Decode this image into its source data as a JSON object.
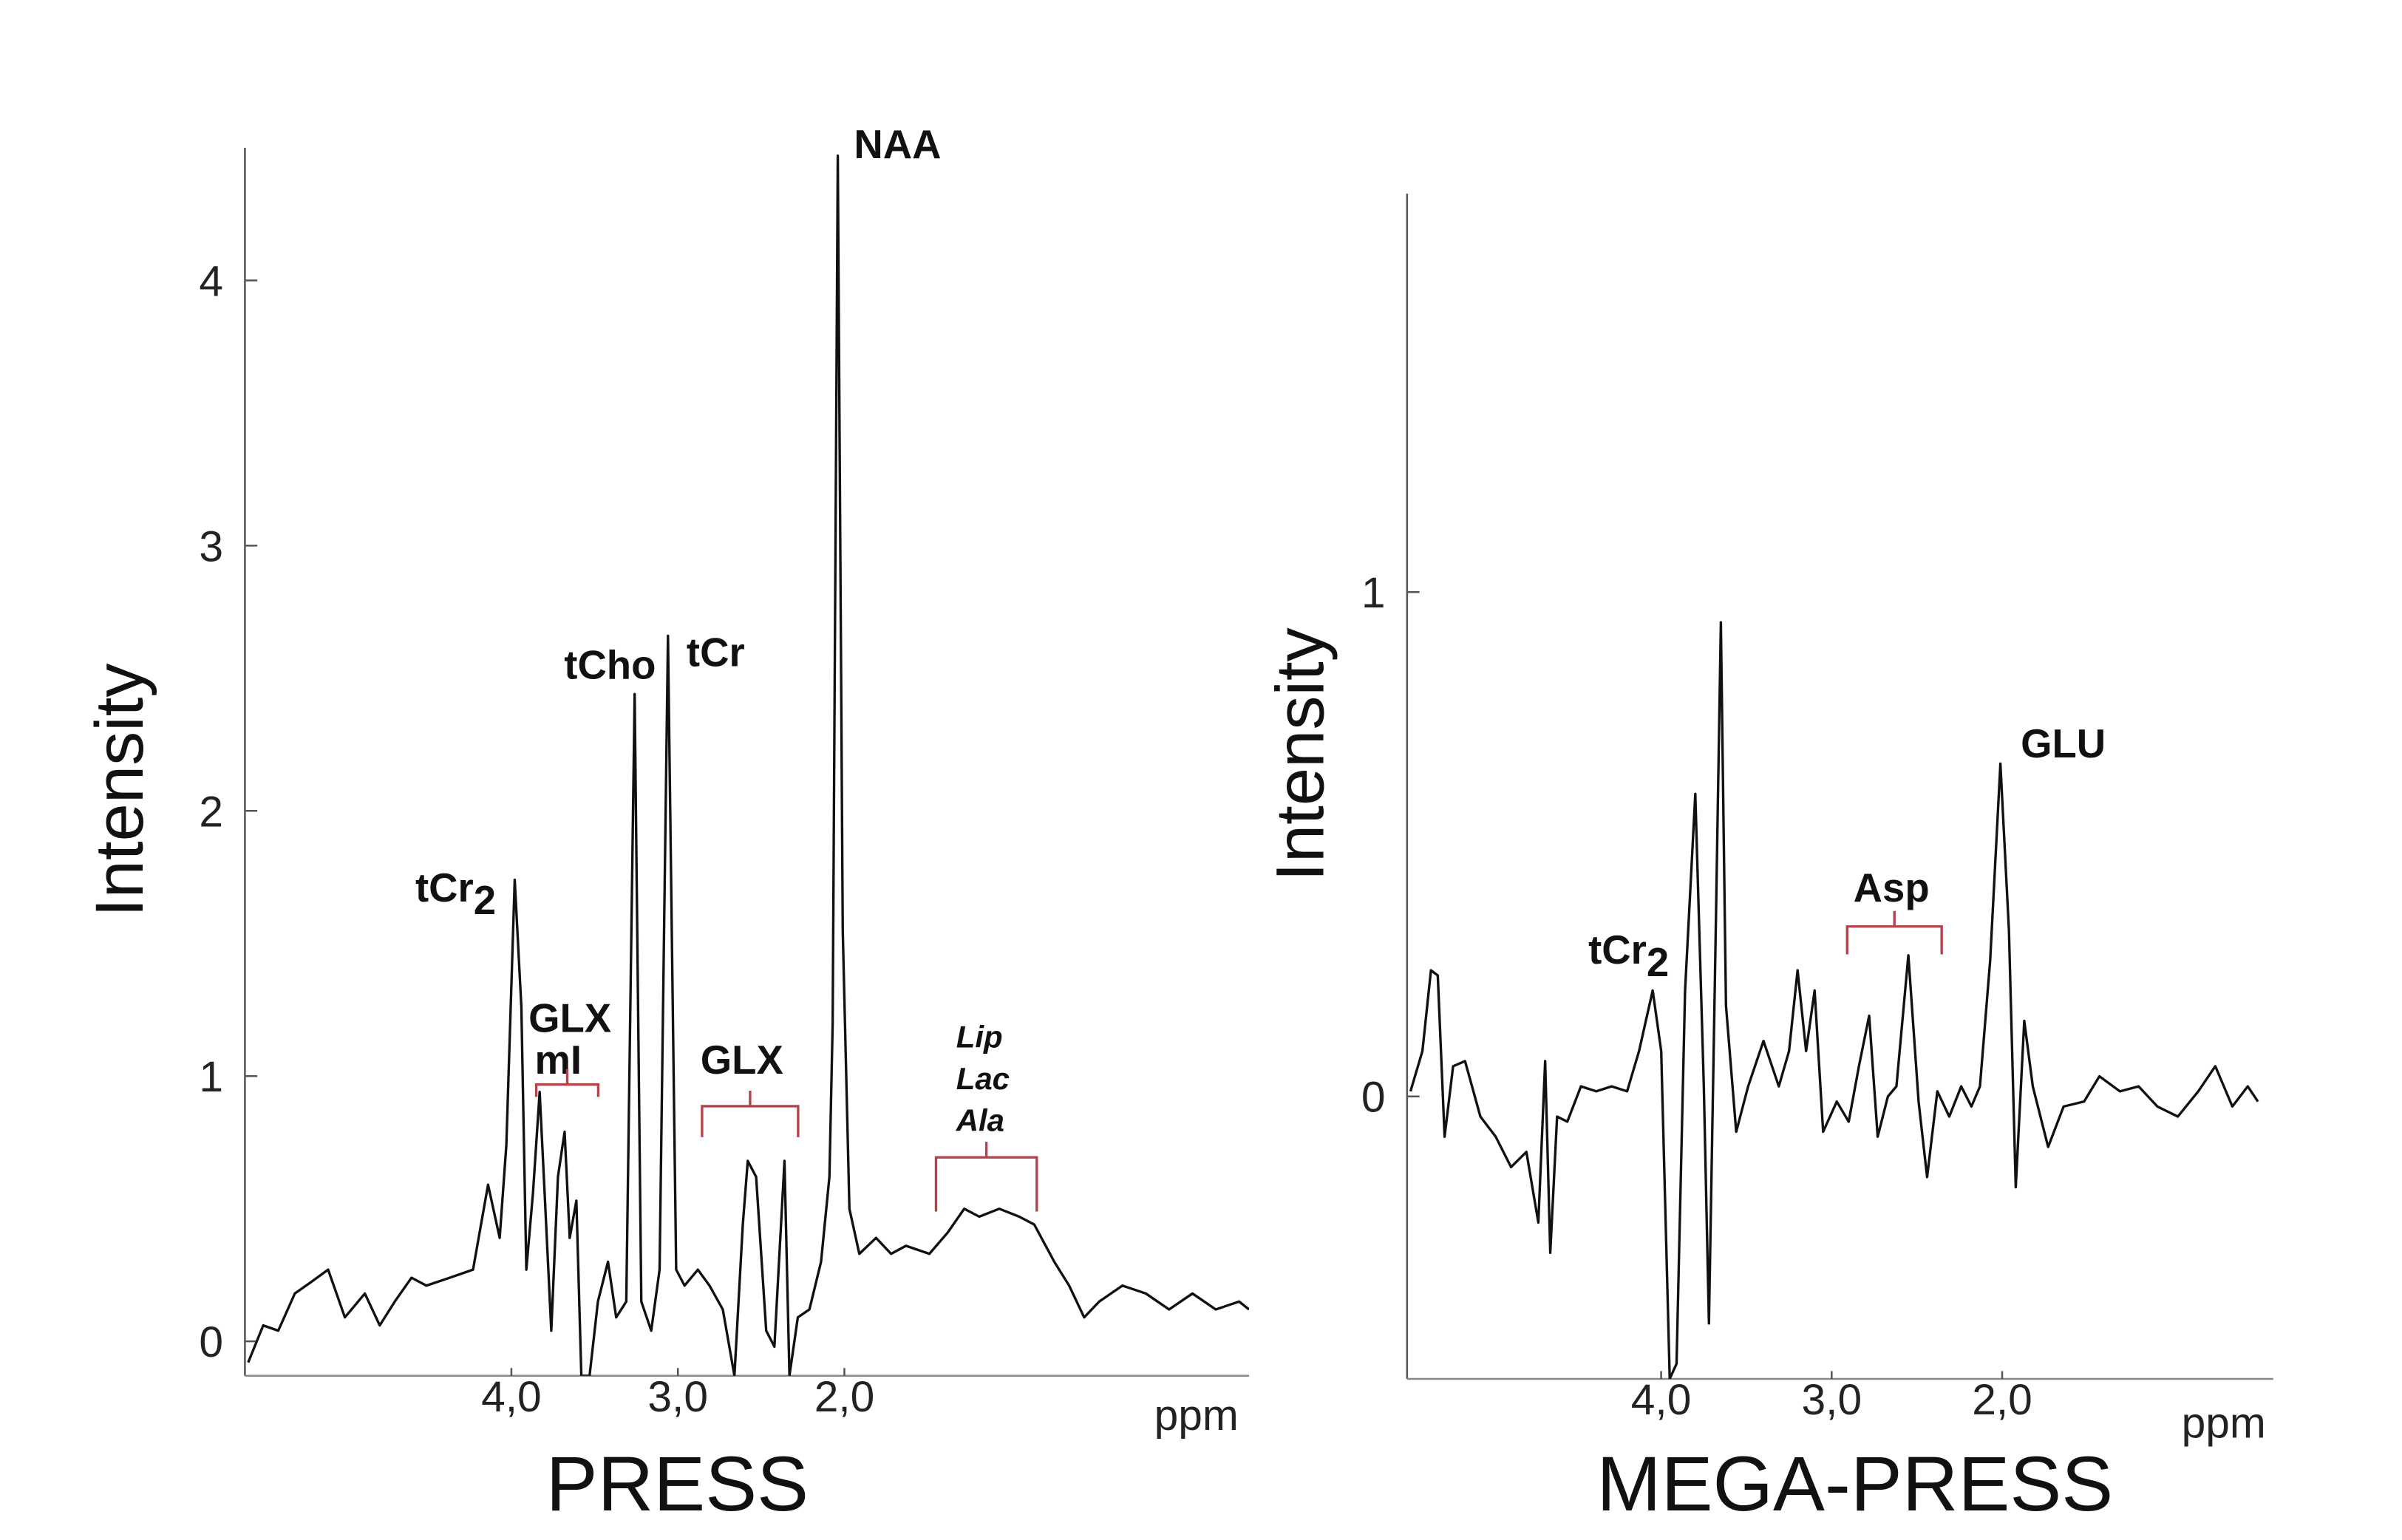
{
  "chart_data": [
    {
      "type": "line",
      "title": "PRESS",
      "ylabel": "Intensity",
      "xlabel": "ppm",
      "x": [
        5.58,
        5.49,
        5.4,
        5.3,
        5.21,
        5.1,
        5.0,
        4.88,
        4.79,
        4.7,
        4.6,
        4.51,
        4.37,
        4.23,
        4.14,
        4.07,
        4.03,
        3.98,
        3.94,
        3.91,
        3.87,
        3.83,
        3.8,
        3.76,
        3.72,
        3.68,
        3.65,
        3.61,
        3.58,
        3.53,
        3.48,
        3.42,
        3.37,
        3.31,
        3.26,
        3.22,
        3.16,
        3.11,
        3.06,
        3.01,
        2.96,
        2.88,
        2.81,
        2.73,
        2.66,
        2.61,
        2.58,
        2.53,
        2.47,
        2.42,
        2.36,
        2.33,
        2.28,
        2.21,
        2.14,
        2.09,
        2.07,
        2.04,
        2.01,
        1.97,
        1.91,
        1.81,
        1.72,
        1.63,
        1.49,
        1.38,
        1.28,
        1.19,
        1.07,
        0.95,
        0.86,
        0.74,
        0.65,
        0.56,
        0.47,
        0.33,
        0.19,
        0.05,
        -0.09,
        -0.23,
        -0.37,
        -0.43
      ],
      "series": [
        {
          "color": "#111111",
          "values": [
            -0.08,
            0.06,
            0.04,
            0.18,
            0.22,
            0.27,
            0.09,
            0.18,
            0.06,
            0.15,
            0.24,
            0.21,
            0.24,
            0.27,
            0.59,
            0.39,
            0.74,
            1.74,
            1.26,
            0.27,
            0.56,
            0.94,
            0.56,
            0.04,
            0.62,
            0.79,
            0.39,
            0.53,
            -0.13,
            -0.13,
            0.15,
            0.3,
            0.09,
            0.15,
            2.44,
            0.15,
            0.04,
            0.27,
            2.66,
            0.27,
            0.21,
            0.27,
            0.21,
            0.12,
            -0.13,
            0.44,
            0.68,
            0.62,
            0.04,
            -0.02,
            0.68,
            -0.13,
            0.09,
            0.12,
            0.3,
            0.62,
            1.2,
            4.47,
            1.55,
            0.5,
            0.33,
            0.39,
            0.33,
            0.36,
            0.33,
            0.41,
            0.5,
            0.47,
            0.5,
            0.47,
            0.44,
            0.3,
            0.21,
            0.09,
            0.15,
            0.21,
            0.18,
            0.12,
            0.18,
            0.12,
            0.15,
            0.12
          ]
        }
      ],
      "xlim": [
        5.6,
        -0.43
      ],
      "ylim": [
        -0.13,
        4.5
      ],
      "xticks": [
        {
          "value": 4,
          "label": "4,0"
        },
        {
          "value": 3,
          "label": "3,0"
        },
        {
          "value": 2,
          "label": "2,0"
        }
      ],
      "yticks": [
        0,
        1,
        2,
        3,
        4
      ],
      "annotations": [
        {
          "text": "tCr",
          "sub": "2"
        },
        {
          "text": "GLX"
        },
        {
          "text": "mI"
        },
        {
          "text": "GLX"
        },
        {
          "text": "tCho"
        },
        {
          "text": "tCr"
        },
        {
          "text": "NAA"
        },
        {
          "text": "Lip"
        },
        {
          "text": "Lac"
        },
        {
          "text": "Ala"
        }
      ]
    },
    {
      "type": "line",
      "title": "MEGA-PRESS",
      "ylabel": "Intensity",
      "xlabel": "ppm",
      "x": [
        5.47,
        5.4,
        5.35,
        5.31,
        5.27,
        5.22,
        5.15,
        5.06,
        4.97,
        4.88,
        4.79,
        4.72,
        4.68,
        4.65,
        4.61,
        4.55,
        4.47,
        4.38,
        4.29,
        4.2,
        4.13,
        4.05,
        4.0,
        3.95,
        3.91,
        3.86,
        3.8,
        3.75,
        3.72,
        3.68,
        3.65,
        3.62,
        3.56,
        3.49,
        3.4,
        3.31,
        3.25,
        3.2,
        3.15,
        3.1,
        3.05,
        2.97,
        2.9,
        2.84,
        2.78,
        2.73,
        2.67,
        2.62,
        2.55,
        2.49,
        2.44,
        2.38,
        2.31,
        2.24,
        2.18,
        2.13,
        2.07,
        2.01,
        1.96,
        1.92,
        1.87,
        1.82,
        1.73,
        1.64,
        1.52,
        1.43,
        1.31,
        1.2,
        1.09,
        0.97,
        0.85,
        0.75,
        0.65,
        0.56,
        0.5
      ],
      "series": [
        {
          "color": "#111111",
          "values": [
            0.01,
            0.09,
            0.25,
            0.24,
            -0.08,
            0.06,
            0.07,
            -0.04,
            -0.08,
            -0.14,
            -0.11,
            -0.25,
            0.07,
            -0.31,
            -0.04,
            -0.05,
            0.02,
            0.01,
            0.02,
            0.01,
            0.09,
            0.21,
            0.09,
            -0.56,
            -0.53,
            0.21,
            0.6,
            0.02,
            -0.45,
            0.33,
            0.94,
            0.18,
            -0.07,
            0.02,
            0.11,
            0.02,
            0.09,
            0.25,
            0.09,
            0.21,
            -0.07,
            -0.01,
            -0.05,
            0.06,
            0.16,
            -0.08,
            0.0,
            0.02,
            0.28,
            -0.01,
            -0.16,
            0.01,
            -0.04,
            0.02,
            -0.02,
            0.02,
            0.27,
            0.66,
            0.33,
            -0.18,
            0.15,
            0.02,
            -0.1,
            -0.02,
            -0.01,
            0.04,
            0.01,
            0.02,
            -0.02,
            -0.04,
            0.01,
            0.06,
            -0.02,
            0.02,
            -0.01
          ]
        }
      ],
      "xlim": [
        5.49,
        0.41
      ],
      "ylim": [
        -0.56,
        1.79
      ],
      "xticks": [
        {
          "value": 4,
          "label": "4,0"
        },
        {
          "value": 3,
          "label": "3,0"
        },
        {
          "value": 2,
          "label": "2,0"
        }
      ],
      "yticks": [
        0,
        1
      ],
      "annotations": [
        {
          "text": "tCr",
          "sub": "2"
        },
        {
          "text": "Asp"
        },
        {
          "text": "GLU"
        }
      ]
    }
  ]
}
